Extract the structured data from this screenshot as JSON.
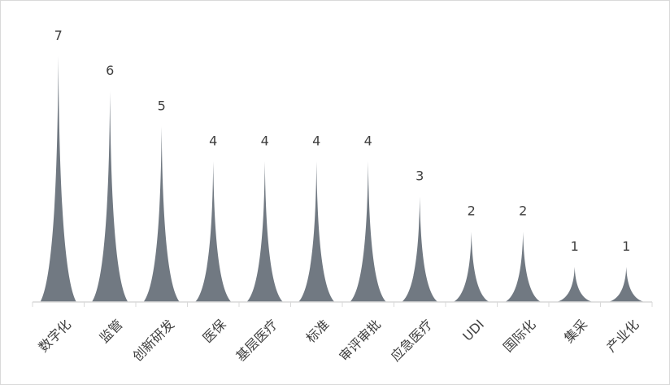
{
  "chart_data": {
    "type": "bar",
    "bar_shape": "peaked",
    "categories": [
      "数字化",
      "监管",
      "创新研发",
      "医保",
      "基层医疗",
      "标准",
      "审评审批",
      "应急医疗",
      "UDI",
      "国际化",
      "集采",
      "产业化"
    ],
    "values": [
      7,
      6,
      5,
      4,
      4,
      4,
      4,
      3,
      2,
      2,
      1,
      1
    ],
    "data_labels": true,
    "title": "",
    "xlabel": "",
    "ylabel": "",
    "ylim": [
      0,
      7
    ],
    "grid": false,
    "legend": "none",
    "colors": {
      "bar": "#717982",
      "axis": "#d9d9d9",
      "text": "#404040"
    }
  }
}
